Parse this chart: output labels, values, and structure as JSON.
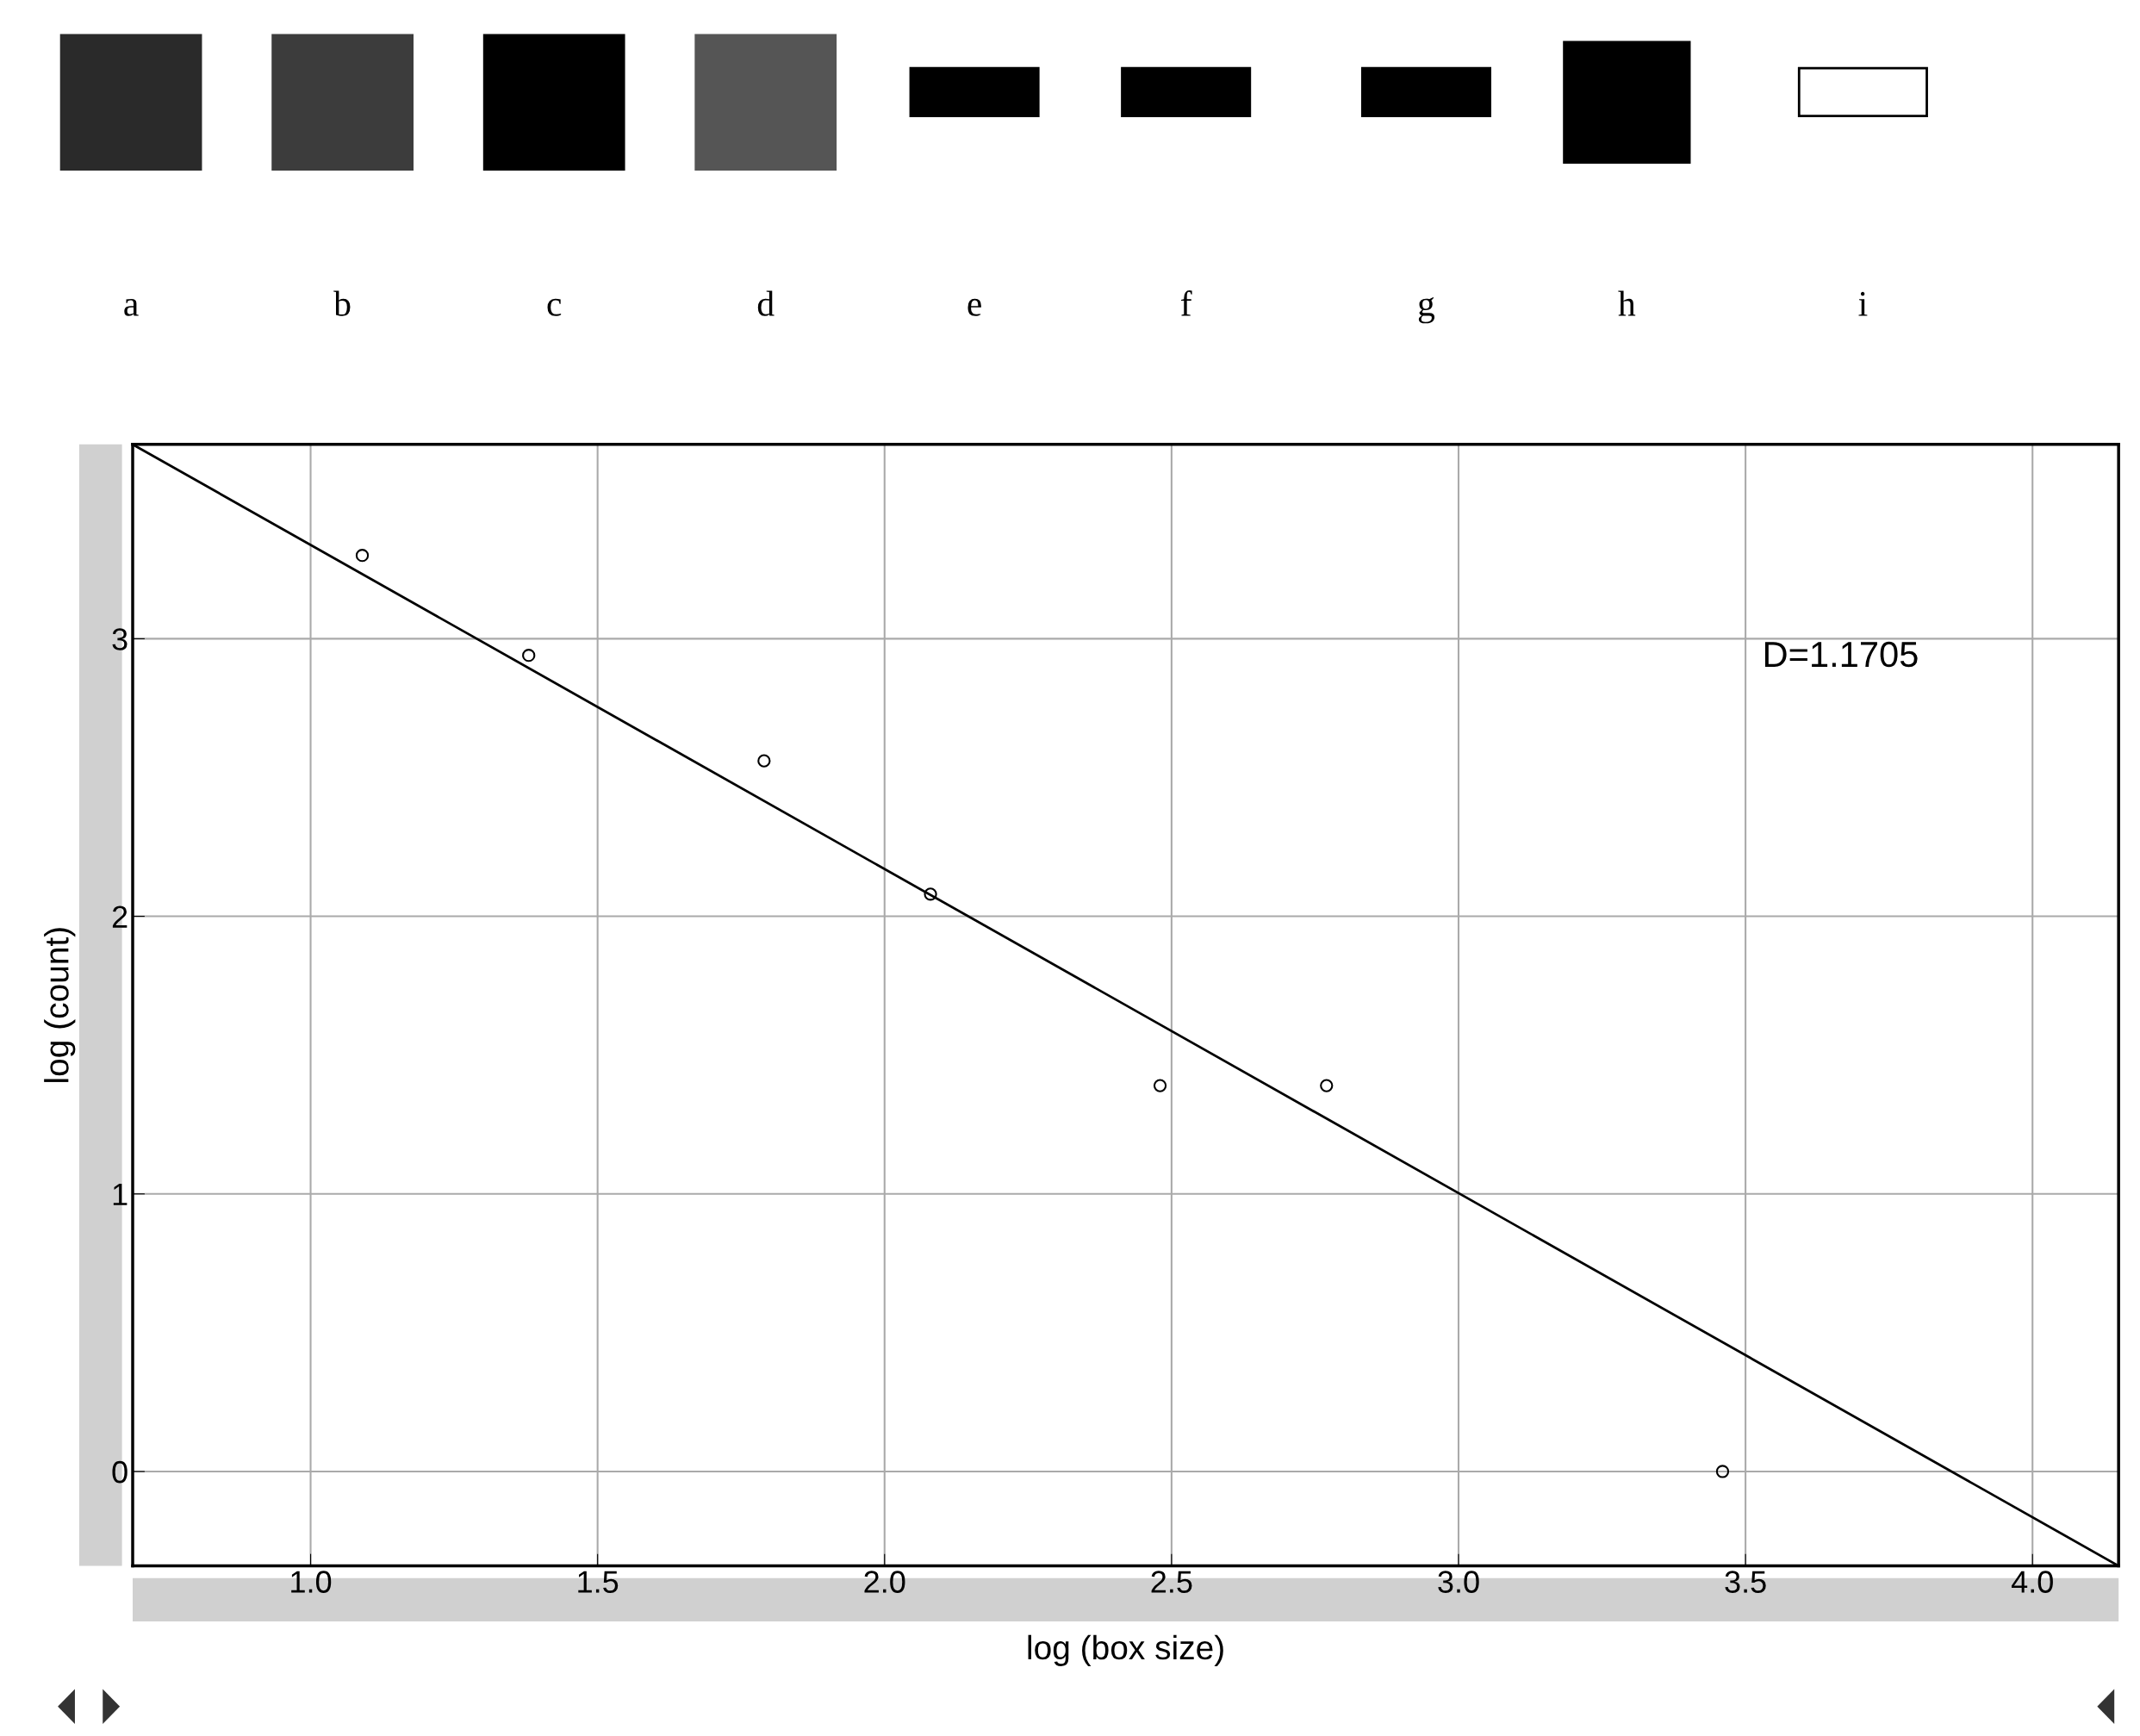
{
  "chart_data": {
    "type": "scatter",
    "xlabel": "log (box size)",
    "ylabel": "log (count)",
    "series": [
      {
        "marker": "circle",
        "color": "#000000",
        "x": [
          1.09,
          1.38,
          1.79,
          2.08,
          2.48,
          2.77,
          3.46
        ],
        "values": [
          3.3,
          2.94,
          2.56,
          2.08,
          1.39,
          1.39,
          0.0
        ]
      },
      {
        "type": "line",
        "color": "#000000",
        "x": [
          0.69,
          4.15
        ],
        "values": [
          3.7,
          -0.34
        ]
      }
    ],
    "xlim": [
      0.69,
      4.15
    ],
    "ylim": [
      -0.34,
      3.7
    ],
    "xticks": [
      {
        "value": 1,
        "label": "1.0"
      },
      1.5,
      {
        "value": 2,
        "label": "2.0"
      },
      2.5,
      {
        "value": 3,
        "label": "3.0"
      },
      3.5,
      {
        "value": 4,
        "label": "4.0"
      }
    ],
    "yticks": [
      0,
      1,
      2,
      3
    ],
    "grid": true,
    "annotations": [
      "a",
      "b",
      "c",
      "d",
      "e",
      "f",
      "g",
      "h",
      "i",
      "D=1.1705"
    ]
  }
}
